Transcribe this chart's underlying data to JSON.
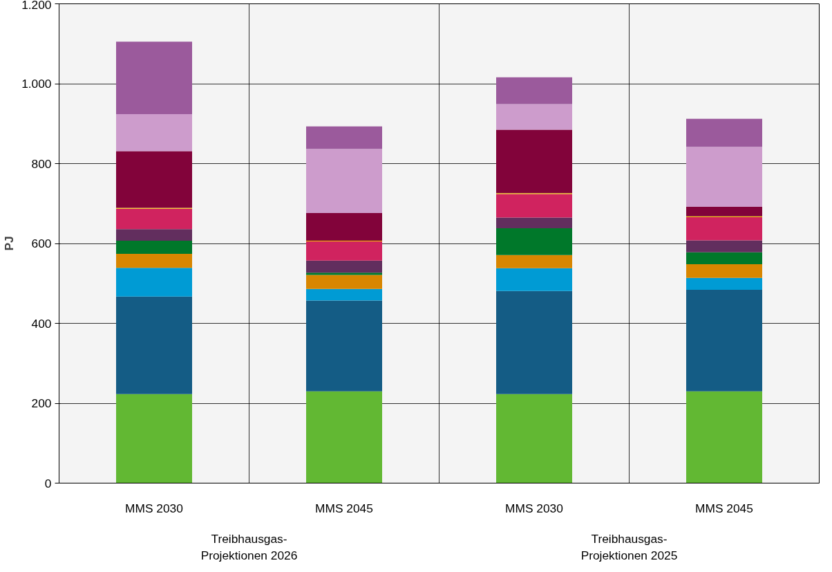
{
  "chart_data": {
    "type": "bar",
    "stacked": true,
    "ylabel": "PJ",
    "categories": [
      "MMS 2030",
      "MMS 2045",
      "MMS 2030",
      "MMS 2045"
    ],
    "annotations": [
      "Treibhausgas-Projektionen 2026",
      "Treibhausgas-Projektionen 2025"
    ],
    "series": [
      {
        "color": "#62b833",
        "values": [
          223,
          230,
          223,
          230
        ]
      },
      {
        "color": "#145c85",
        "values": [
          244,
          227,
          258,
          254
        ]
      },
      {
        "color": "#009bd4",
        "values": [
          72,
          29,
          57,
          30
        ]
      },
      {
        "color": "#d88600",
        "values": [
          35,
          35,
          33,
          34
        ]
      },
      {
        "color": "#00782a",
        "values": [
          33,
          6,
          67,
          30
        ]
      },
      {
        "color": "#622e5e",
        "values": [
          29,
          30,
          27,
          30
        ]
      },
      {
        "color": "#d0235f",
        "values": [
          51,
          48,
          59,
          58
        ]
      },
      {
        "color": "#f2c800",
        "values": [
          2,
          2,
          2,
          2
        ]
      },
      {
        "color": "#82033a",
        "values": [
          142,
          69,
          159,
          24
        ]
      },
      {
        "color": "#cd9ccc",
        "values": [
          93,
          161,
          64,
          150
        ]
      },
      {
        "color": "#9b5a9c",
        "values": [
          181,
          56,
          67,
          70
        ]
      }
    ],
    "ylim": [
      0,
      1200
    ],
    "yticks": [
      0,
      200,
      400,
      600,
      800,
      {
        "value": 1000,
        "label": "1.000"
      },
      {
        "value": 1200,
        "label": "1.200"
      }
    ],
    "grid": true
  }
}
